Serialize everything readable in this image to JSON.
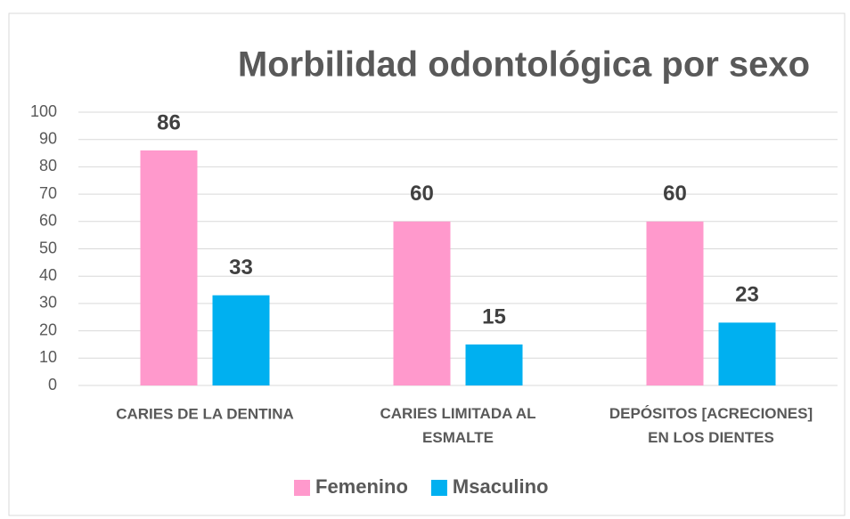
{
  "chart_data": {
    "type": "bar",
    "title": "Morbilidad odontológica por sexo",
    "categories": [
      "CARIES DE LA DENTINA",
      "CARIES LIMITADA AL ESMALTE",
      "DEPÓSITOS [ACRECIONES] EN LOS DIENTES"
    ],
    "series": [
      {
        "name": "Femenino",
        "color": "#ff99cc",
        "values": [
          86,
          60,
          60
        ]
      },
      {
        "name": "Msaculino",
        "color": "#00b0f0",
        "values": [
          33,
          15,
          23
        ]
      }
    ],
    "ylim": [
      0,
      100
    ],
    "yticks": [
      0,
      10,
      20,
      30,
      40,
      50,
      60,
      70,
      80,
      90,
      100
    ],
    "grid": true,
    "legend": "bottom"
  }
}
